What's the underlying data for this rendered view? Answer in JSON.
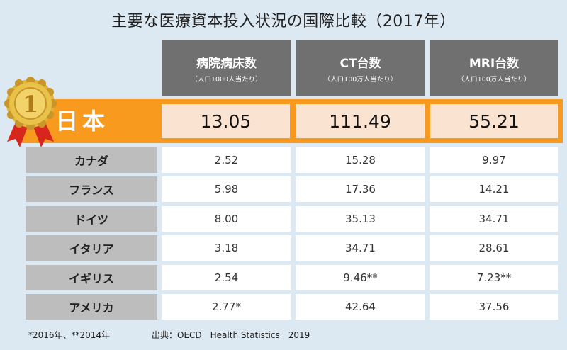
{
  "title": "主要な医療資本投入状況の国際比較（2017年）",
  "headers": [
    {
      "main": "病院病床数",
      "sub": "（人口1000人当たり）"
    },
    {
      "main": "CT台数",
      "sub": "（人口100万人当たり）"
    },
    {
      "main": "MRI台数",
      "sub": "（人口100万人当たり）"
    }
  ],
  "highlight": {
    "country": "日本",
    "values": [
      "13.05",
      "111.49",
      "55.21"
    ]
  },
  "medal_number": "1",
  "rows": [
    {
      "country": "カナダ",
      "values": [
        "2.52",
        "15.28",
        "9.97"
      ]
    },
    {
      "country": "フランス",
      "values": [
        "5.98",
        "17.36",
        "14.21"
      ]
    },
    {
      "country": "ドイツ",
      "values": [
        "8.00",
        "35.13",
        "34.71"
      ]
    },
    {
      "country": "イタリア",
      "values": [
        "3.18",
        "34.71",
        "28.61"
      ]
    },
    {
      "country": "イギリス",
      "values": [
        "2.54",
        "9.46**",
        "7.23**"
      ]
    },
    {
      "country": "アメリカ",
      "values": [
        "2.77*",
        "42.64",
        "37.56"
      ]
    }
  ],
  "footnote": "*2016年、**2014年",
  "source": "出典：OECD　Health Statistics　2019",
  "colors": {
    "accent": "#f79a1e",
    "highlight_cell": "#fbe3d1",
    "header": "#707070",
    "row_label": "#bdbdbd",
    "background": "#dde9f2"
  }
}
